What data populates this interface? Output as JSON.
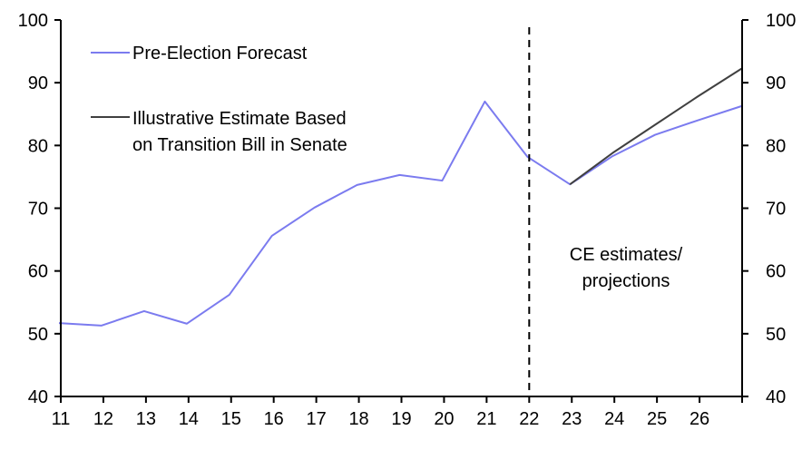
{
  "chart_data": {
    "type": "line",
    "title": "",
    "xlabel": "",
    "ylabel": "",
    "ylabel_right": "",
    "ylim": [
      40,
      100
    ],
    "ylim_right": [
      40,
      100
    ],
    "y_ticks": [
      40,
      50,
      60,
      70,
      80,
      90,
      100
    ],
    "x_tick_labels": [
      "11",
      "12",
      "13",
      "14",
      "15",
      "16",
      "17",
      "18",
      "19",
      "20",
      "21",
      "22",
      "23",
      "24",
      "25",
      "26"
    ],
    "x": [
      11,
      12,
      13,
      14,
      15,
      16,
      17,
      18,
      19,
      20,
      21,
      22,
      23,
      24,
      25,
      26,
      27
    ],
    "grid": false,
    "legend_position": "top-left",
    "series": [
      {
        "name": "Pre-Election Forecast",
        "color": "#7b7bef",
        "x": [
          11,
          12,
          13,
          14,
          15,
          16,
          17,
          18,
          19,
          20,
          21,
          22,
          23,
          24,
          25,
          26,
          27
        ],
        "values": [
          51.7,
          51.3,
          53.6,
          51.6,
          56.2,
          65.6,
          70.1,
          73.7,
          75.3,
          74.4,
          87.0,
          78.2,
          73.8,
          78.3,
          81.7,
          84.0,
          86.3
        ]
      },
      {
        "name": "Illustrative Estimate Based on Transition Bill in Senate",
        "legend_lines": [
          "Illustrative Estimate Based",
          "on Transition Bill in Senate"
        ],
        "color": "#404040",
        "x": [
          23,
          24,
          25,
          26,
          27
        ],
        "values": [
          73.8,
          78.8,
          83.3,
          87.8,
          92.3
        ]
      }
    ],
    "annotations": [
      {
        "type": "vline",
        "x": 22,
        "style": "dashed",
        "color": "#000000"
      },
      {
        "type": "text",
        "lines": [
          "CE estimates/",
          "projections"
        ]
      }
    ]
  }
}
